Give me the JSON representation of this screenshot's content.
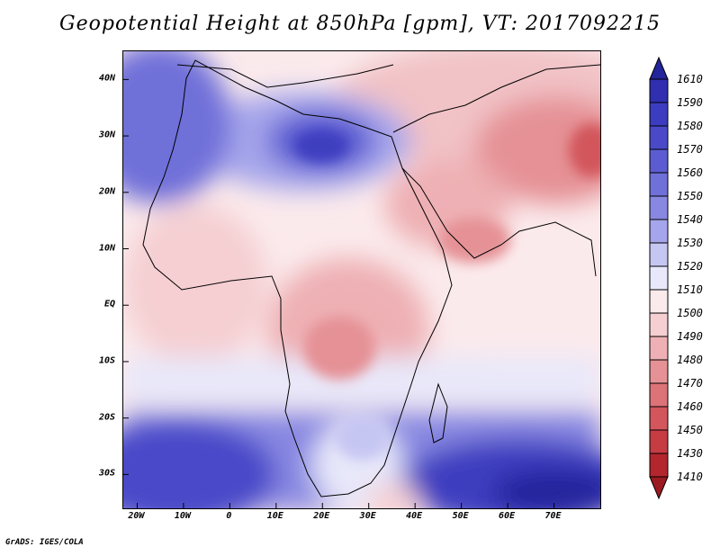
{
  "title": "Geopotential Height at 850hPa [gpm], VT: 2017092215",
  "credit": "GrADS: IGES/COLA",
  "map": {
    "lon_range": [
      -23,
      80
    ],
    "lat_range": [
      -36,
      45
    ],
    "y_axis_labels": [
      {
        "lat": 40,
        "text": "40N"
      },
      {
        "lat": 30,
        "text": "30N"
      },
      {
        "lat": 20,
        "text": "20N"
      },
      {
        "lat": 10,
        "text": "10N"
      },
      {
        "lat": 0,
        "text": "EQ"
      },
      {
        "lat": -10,
        "text": "10S"
      },
      {
        "lat": -20,
        "text": "20S"
      },
      {
        "lat": -30,
        "text": "30S"
      }
    ],
    "x_axis_labels": [
      {
        "lon": -20,
        "text": "20W"
      },
      {
        "lon": -10,
        "text": "10W"
      },
      {
        "lon": 0,
        "text": "0"
      },
      {
        "lon": 10,
        "text": "10E"
      },
      {
        "lon": 20,
        "text": "20E"
      },
      {
        "lon": 30,
        "text": "30E"
      },
      {
        "lon": 40,
        "text": "40E"
      },
      {
        "lon": 50,
        "text": "50E"
      },
      {
        "lon": 60,
        "text": "60E"
      },
      {
        "lon": 70,
        "text": "70E"
      }
    ]
  },
  "colorbar": {
    "levels_top_to_bottom": [
      "1610",
      "1590",
      "1580",
      "1570",
      "1560",
      "1550",
      "1540",
      "1530",
      "1520",
      "1510",
      "1500",
      "1490",
      "1480",
      "1470",
      "1460",
      "1450",
      "1430",
      "1410"
    ],
    "colors_top_to_bottom": [
      "#24249b",
      "#2f2fb0",
      "#3c3cc0",
      "#4a4ac9",
      "#5c5cd2",
      "#7070d9",
      "#8888e2",
      "#a5a5eb",
      "#c6c6f3",
      "#e8e8fa",
      "#fbeaec",
      "#f5cfd2",
      "#eeb0b4",
      "#e59195",
      "#dc7378",
      "#d2565c",
      "#c63c43",
      "#b3262d",
      "#9c1a22"
    ]
  }
}
